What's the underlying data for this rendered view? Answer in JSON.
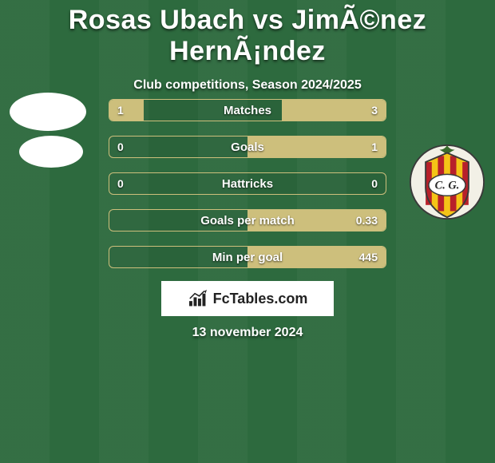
{
  "title": "Rosas Ubach vs JimÃ©nez HernÃ¡ndez",
  "subtitle": "Club competitions, Season 2024/2025",
  "date": "13 november 2024",
  "branding": "FcTables.com",
  "colors": {
    "bar_border": "#cdbf7c",
    "bar_fill": "#cdbf7c",
    "background": "#2d6a3e"
  },
  "crest_right": {
    "bg": "#f2f0e6",
    "stripes": [
      "#b8202a",
      "#f4c417"
    ],
    "letters": "C. G."
  },
  "rows": [
    {
      "label": "Matches",
      "left": "1",
      "right": "3",
      "left_pct": 25,
      "right_pct": 75
    },
    {
      "label": "Goals",
      "left": "0",
      "right": "1",
      "left_pct": 0,
      "right_pct": 100
    },
    {
      "label": "Hattricks",
      "left": "0",
      "right": "0",
      "left_pct": 0,
      "right_pct": 0
    },
    {
      "label": "Goals per match",
      "left": "",
      "right": "0.33",
      "left_pct": 0,
      "right_pct": 100
    },
    {
      "label": "Min per goal",
      "left": "",
      "right": "445",
      "left_pct": 0,
      "right_pct": 100
    }
  ]
}
